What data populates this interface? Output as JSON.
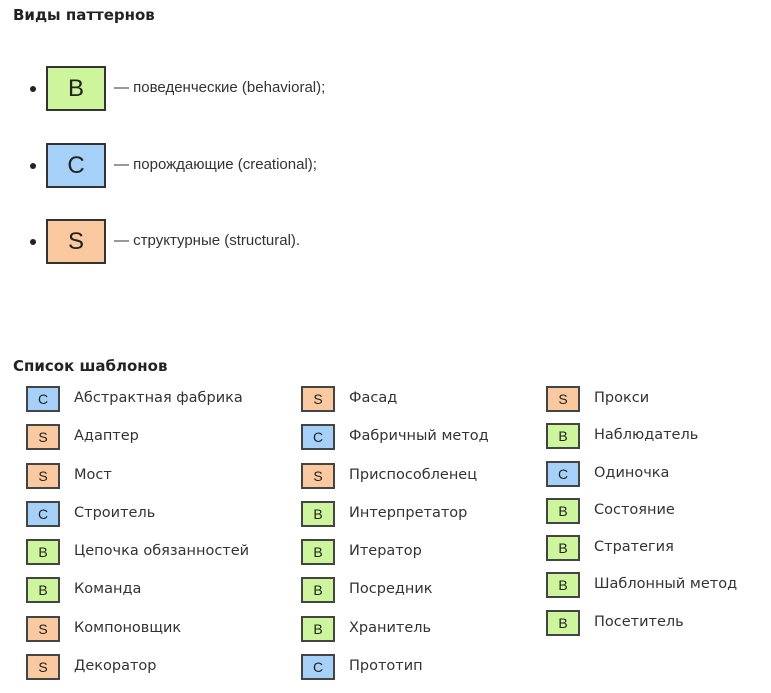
{
  "colors": {
    "B": "#ccf59c",
    "C": "#a5d0f7",
    "S": "#fbc99f"
  },
  "types_heading": "Виды паттернов",
  "types": [
    {
      "code": "B",
      "label": "B",
      "description": "— поведенческие (behavioral);"
    },
    {
      "code": "C",
      "label": "C",
      "description": "— порождающие (creational);"
    },
    {
      "code": "S",
      "label": "S",
      "description": "— структурные (structural)."
    }
  ],
  "list_heading": "Список шаблонов",
  "columns": [
    [
      {
        "code": "C",
        "name": "Абстрактная фабрика"
      },
      {
        "code": "S",
        "name": "Адаптер"
      },
      {
        "code": "S",
        "name": "Мост"
      },
      {
        "code": "C",
        "name": "Строитель"
      },
      {
        "code": "B",
        "name": "Цепочка обязанностей"
      },
      {
        "code": "B",
        "name": "Команда"
      },
      {
        "code": "S",
        "name": "Компоновщик"
      },
      {
        "code": "S",
        "name": "Декоратор"
      }
    ],
    [
      {
        "code": "S",
        "name": "Фасад"
      },
      {
        "code": "C",
        "name": "Фабричный метод"
      },
      {
        "code": "S",
        "name": "Приспособленец"
      },
      {
        "code": "B",
        "name": "Интерпретатор"
      },
      {
        "code": "B",
        "name": "Итератор"
      },
      {
        "code": "B",
        "name": "Посредник"
      },
      {
        "code": "B",
        "name": "Хранитель"
      },
      {
        "code": "C",
        "name": "Прототип"
      }
    ],
    [
      {
        "code": "S",
        "name": "Прокси"
      },
      {
        "code": "B",
        "name": "Наблюдатель"
      },
      {
        "code": "C",
        "name": "Одиночка"
      },
      {
        "code": "B",
        "name": "Состояние"
      },
      {
        "code": "B",
        "name": "Стратегия"
      },
      {
        "code": "B",
        "name": "Шаблонный метод"
      },
      {
        "code": "B",
        "name": "Посетитель"
      }
    ]
  ]
}
